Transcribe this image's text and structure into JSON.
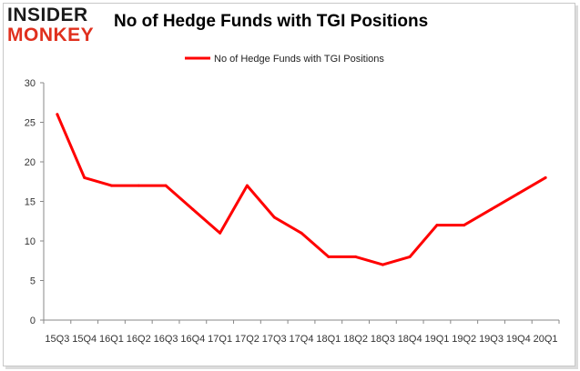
{
  "logo": {
    "top": "INSIDER",
    "bottom": "MONKEY",
    "top_color": "#1a1a1a",
    "bottom_color": "#e0301e"
  },
  "chart_data": {
    "type": "line",
    "title": "No of Hedge Funds with TGI Positions",
    "xlabel": "",
    "ylabel": "",
    "categories": [
      "15Q3",
      "15Q4",
      "16Q1",
      "16Q2",
      "16Q3",
      "16Q4",
      "17Q1",
      "17Q2",
      "17Q3",
      "17Q4",
      "18Q1",
      "18Q2",
      "18Q3",
      "18Q4",
      "19Q1",
      "19Q2",
      "19Q3",
      "19Q4",
      "20Q1"
    ],
    "series": [
      {
        "name": "No of Hedge Funds with TGI Positions",
        "color": "#ff0000",
        "values": [
          26,
          18,
          17,
          17,
          17,
          14,
          11,
          17,
          13,
          11,
          8,
          8,
          7,
          8,
          12,
          12,
          14,
          16,
          18
        ]
      }
    ],
    "ylim": [
      0,
      30
    ],
    "yticks": [
      0,
      5,
      10,
      15,
      20,
      25,
      30
    ],
    "grid": false,
    "legend_position": "top"
  }
}
